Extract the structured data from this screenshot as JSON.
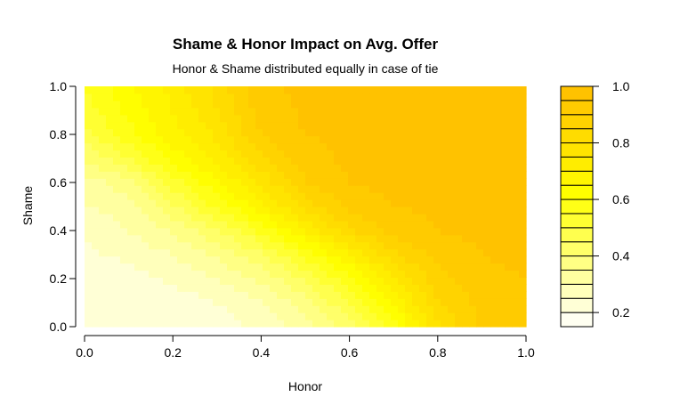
{
  "chart_data": {
    "type": "heatmap",
    "title": "Shame & Honor Impact on Avg. Offer",
    "subtitle": "Honor & Shame distributed equally in case of tie",
    "xlabel": "Honor",
    "ylabel": "Shame",
    "xlim": [
      0,
      1
    ],
    "ylim": [
      0,
      1
    ],
    "x": [
      0.0,
      0.1,
      0.2,
      0.3,
      0.4,
      0.5,
      0.6,
      0.7,
      0.8,
      0.9,
      1.0
    ],
    "y": [
      0.0,
      0.1,
      0.2,
      0.3,
      0.4,
      0.5,
      0.6,
      0.7,
      0.8,
      0.9,
      1.0
    ],
    "z": [
      [
        0.2,
        0.2,
        0.2,
        0.22,
        0.26,
        0.32,
        0.42,
        0.58,
        0.78,
        0.92,
        0.92
      ],
      [
        0.2,
        0.21,
        0.22,
        0.25,
        0.3,
        0.38,
        0.5,
        0.66,
        0.84,
        0.92,
        0.94
      ],
      [
        0.22,
        0.23,
        0.26,
        0.3,
        0.36,
        0.46,
        0.58,
        0.74,
        0.88,
        0.94,
        0.95
      ],
      [
        0.24,
        0.26,
        0.3,
        0.36,
        0.44,
        0.56,
        0.7,
        0.84,
        0.92,
        0.95,
        0.96
      ],
      [
        0.26,
        0.3,
        0.36,
        0.44,
        0.56,
        0.7,
        0.84,
        0.92,
        0.95,
        0.96,
        0.96
      ],
      [
        0.3,
        0.32,
        0.44,
        0.56,
        0.68,
        0.82,
        0.92,
        0.95,
        0.96,
        0.97,
        0.97
      ],
      [
        0.32,
        0.38,
        0.52,
        0.64,
        0.76,
        0.9,
        0.95,
        0.96,
        0.97,
        0.97,
        0.97
      ],
      [
        0.4,
        0.5,
        0.62,
        0.72,
        0.84,
        0.93,
        0.96,
        0.97,
        0.97,
        0.97,
        0.98
      ],
      [
        0.48,
        0.58,
        0.68,
        0.76,
        0.9,
        0.95,
        0.96,
        0.97,
        0.97,
        0.98,
        0.98
      ],
      [
        0.52,
        0.62,
        0.7,
        0.8,
        0.92,
        0.96,
        0.97,
        0.97,
        0.98,
        0.98,
        0.98
      ],
      [
        0.55,
        0.64,
        0.72,
        0.82,
        0.94,
        0.96,
        0.97,
        0.98,
        0.98,
        0.98,
        0.98
      ]
    ],
    "x_ticks": [
      "0.0",
      "0.2",
      "0.4",
      "0.6",
      "0.8",
      "1.0"
    ],
    "y_ticks": [
      "0.0",
      "0.2",
      "0.4",
      "0.6",
      "0.8",
      "1.0"
    ],
    "legend": {
      "levels": [
        0.15,
        0.2,
        0.25,
        0.3,
        0.35,
        0.4,
        0.45,
        0.5,
        0.55,
        0.6,
        0.65,
        0.7,
        0.75,
        0.8,
        0.85,
        0.9,
        0.95,
        1.0
      ],
      "tick_labels": [
        "0.2",
        "0.4",
        "0.6",
        "0.8",
        "1.0"
      ],
      "placement": "right"
    },
    "colors": {
      "low": "#ffffff",
      "mid": "#ffff00",
      "high": "#ffbe00"
    }
  }
}
